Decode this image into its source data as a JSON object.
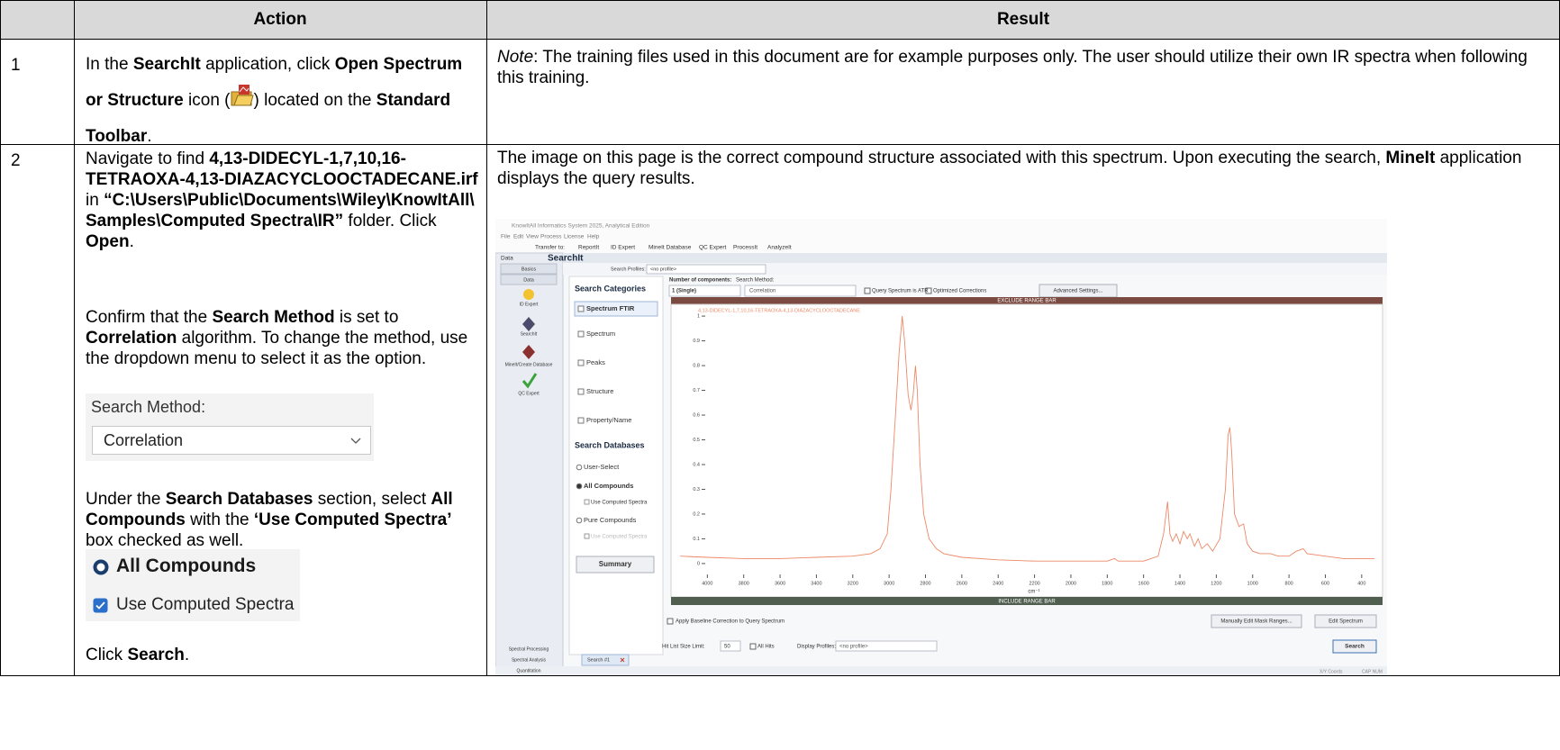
{
  "table": {
    "header": {
      "action": "Action",
      "result": "Result"
    },
    "rows": [
      {
        "number": "1",
        "action": [
          "In the ",
          "SearchIt",
          " application, click ",
          "Open Spectrum or Structure",
          " icon (",
          ") located on the ",
          "Standard Toolbar",
          "."
        ],
        "result": [
          "Note",
          ": The training files used in this document are for example purposes only. The user should utilize their own IR spectra when following this training."
        ]
      },
      {
        "number": "2",
        "action": {
          "step1": [
            "Navigate to find ",
            "4,13-DIDECYL-1,7,10,16-TETRAOXA-4,13-DIAZACYCLOOCTADECANE.irf",
            " in ",
            "“C:\\Users\\Public\\Documents\\Wiley\\KnowItAll\\Samples\\Computed Spectra\\IR”",
            " folder. Click ",
            "Open",
            "."
          ],
          "step2": [
            "Confirm that the ",
            "Search Method",
            " is set to ",
            "Correlation",
            " algorithm. To change the method, use the dropdown menu to select it as the option."
          ],
          "search_method": {
            "label": "Search Method:",
            "value": "Correlation"
          },
          "step3": [
            "Under the ",
            "Search Databases",
            " section, select ",
            "All Compounds",
            " with the ",
            "‘Use Computed Spectra’",
            " box checked as well."
          ],
          "database": {
            "radio": "All Compounds",
            "checkbox": "Use Computed Spectra"
          },
          "step4": [
            "Click ",
            "Search",
            "."
          ]
        },
        "result": [
          "The image on this page is the correct compound structure associated with this spectrum. Upon executing the search, ",
          "MineIt",
          " application displays the query results."
        ]
      }
    ]
  },
  "screenshot": {
    "window_title": "KnowItAll Informatics System 2025, Analytical Edition",
    "menu": [
      "File",
      "Edit",
      "View",
      "Process",
      "License",
      "Help"
    ],
    "toolbar": [
      "Transfer to:",
      "ReportIt",
      "ID Expert",
      "MineIt Database",
      "QC Expert",
      "ProcessIt",
      "AnalyzeIt"
    ],
    "nav": {
      "panel": "Data",
      "tabs": [
        "Basics",
        "Data"
      ],
      "tools": [
        "ID Expert",
        "SearchIt",
        "MineIt/Create Database",
        "QC Expert"
      ],
      "sections": [
        "Spectral Processing",
        "Spectral Analysis",
        "Quantitation"
      ]
    },
    "app_title": "SearchIt",
    "profiles": {
      "label": "Search Profiles:",
      "value": "<no profile>"
    },
    "categories": {
      "title": "Search Categories",
      "items": [
        "Spectrum FTIR",
        "Spectrum",
        "Peaks",
        "Structure",
        "Property/Name"
      ]
    },
    "databases": {
      "title": "Search Databases",
      "items": [
        "User-Select",
        "All Compounds",
        "Use Computed Spectra",
        "Pure Compounds",
        "Use Computed Spectra"
      ]
    },
    "summary": "Summary",
    "components": {
      "label": "Number of components:",
      "value": "1 (Single)"
    },
    "method": {
      "label": "Search Method:",
      "value": "Correlation"
    },
    "options": [
      "Query Spectrum is ATR",
      "Optimized Corrections"
    ],
    "advanced": "Advanced Settings...",
    "exclude_bar": "EXCLUDE RANGE BAR",
    "include_bar": "INCLUDE RANGE BAR",
    "spectrum": {
      "type": "line",
      "name": "4,13-DIDECYL-1,7,10,16-TETRAOXA-4,13-DIAZACYCLOOCTADECANE",
      "color": "#ee8866",
      "xlabel": "cm⁻¹",
      "x": [
        4150,
        4000,
        3800,
        3600,
        3400,
        3200,
        3100,
        3050,
        3010,
        2990,
        2965,
        2945,
        2928,
        2915,
        2895,
        2880,
        2868,
        2855,
        2845,
        2830,
        2810,
        2780,
        2740,
        2700,
        2600,
        2400,
        2200,
        2000,
        1800,
        1760,
        1740,
        1600,
        1520,
        1490,
        1468,
        1455,
        1440,
        1420,
        1400,
        1380,
        1360,
        1345,
        1320,
        1300,
        1280,
        1250,
        1220,
        1180,
        1150,
        1135,
        1125,
        1115,
        1100,
        1075,
        1050,
        1030,
        1000,
        960,
        900,
        860,
        800,
        760,
        722,
        700,
        600,
        500,
        400,
        330
      ],
      "y": [
        0.03,
        0.025,
        0.02,
        0.02,
        0.025,
        0.03,
        0.04,
        0.06,
        0.12,
        0.3,
        0.6,
        0.85,
        1.0,
        0.9,
        0.68,
        0.62,
        0.68,
        0.8,
        0.7,
        0.4,
        0.2,
        0.1,
        0.06,
        0.04,
        0.025,
        0.015,
        0.01,
        0.01,
        0.01,
        0.02,
        0.01,
        0.01,
        0.03,
        0.12,
        0.25,
        0.12,
        0.09,
        0.12,
        0.08,
        0.13,
        0.1,
        0.12,
        0.07,
        0.1,
        0.06,
        0.08,
        0.05,
        0.1,
        0.3,
        0.52,
        0.55,
        0.45,
        0.2,
        0.15,
        0.16,
        0.08,
        0.05,
        0.04,
        0.04,
        0.03,
        0.03,
        0.05,
        0.06,
        0.04,
        0.03,
        0.02,
        0.02,
        0.02
      ],
      "xlim": [
        4190,
        310
      ],
      "ylim": [
        -0.044,
        1.044
      ],
      "xticks": [
        4000,
        3800,
        3600,
        3400,
        3200,
        3000,
        2800,
        2600,
        2400,
        2200,
        2000,
        1800,
        1600,
        1400,
        1200,
        1000,
        800,
        600,
        400
      ],
      "yticks": [
        0,
        0.1,
        0.2,
        0.3,
        0.4,
        0.5,
        0.6,
        0.7,
        0.8,
        0.9,
        1
      ]
    },
    "baseline": "Apply Baseline Correction to Query Spectrum",
    "buttons": [
      "Manually Edit Mask Ranges...",
      "Edit Spectrum",
      "Search"
    ],
    "hit_list": {
      "label": "Hit List Size Limit:",
      "value": "50"
    },
    "all_hits": "All Hits",
    "display_profiles": {
      "label": "Display Profiles:",
      "value": "<no profile>"
    },
    "tab": "Search #1",
    "status": [
      "X/Y Coords",
      "CAP NUM"
    ]
  }
}
